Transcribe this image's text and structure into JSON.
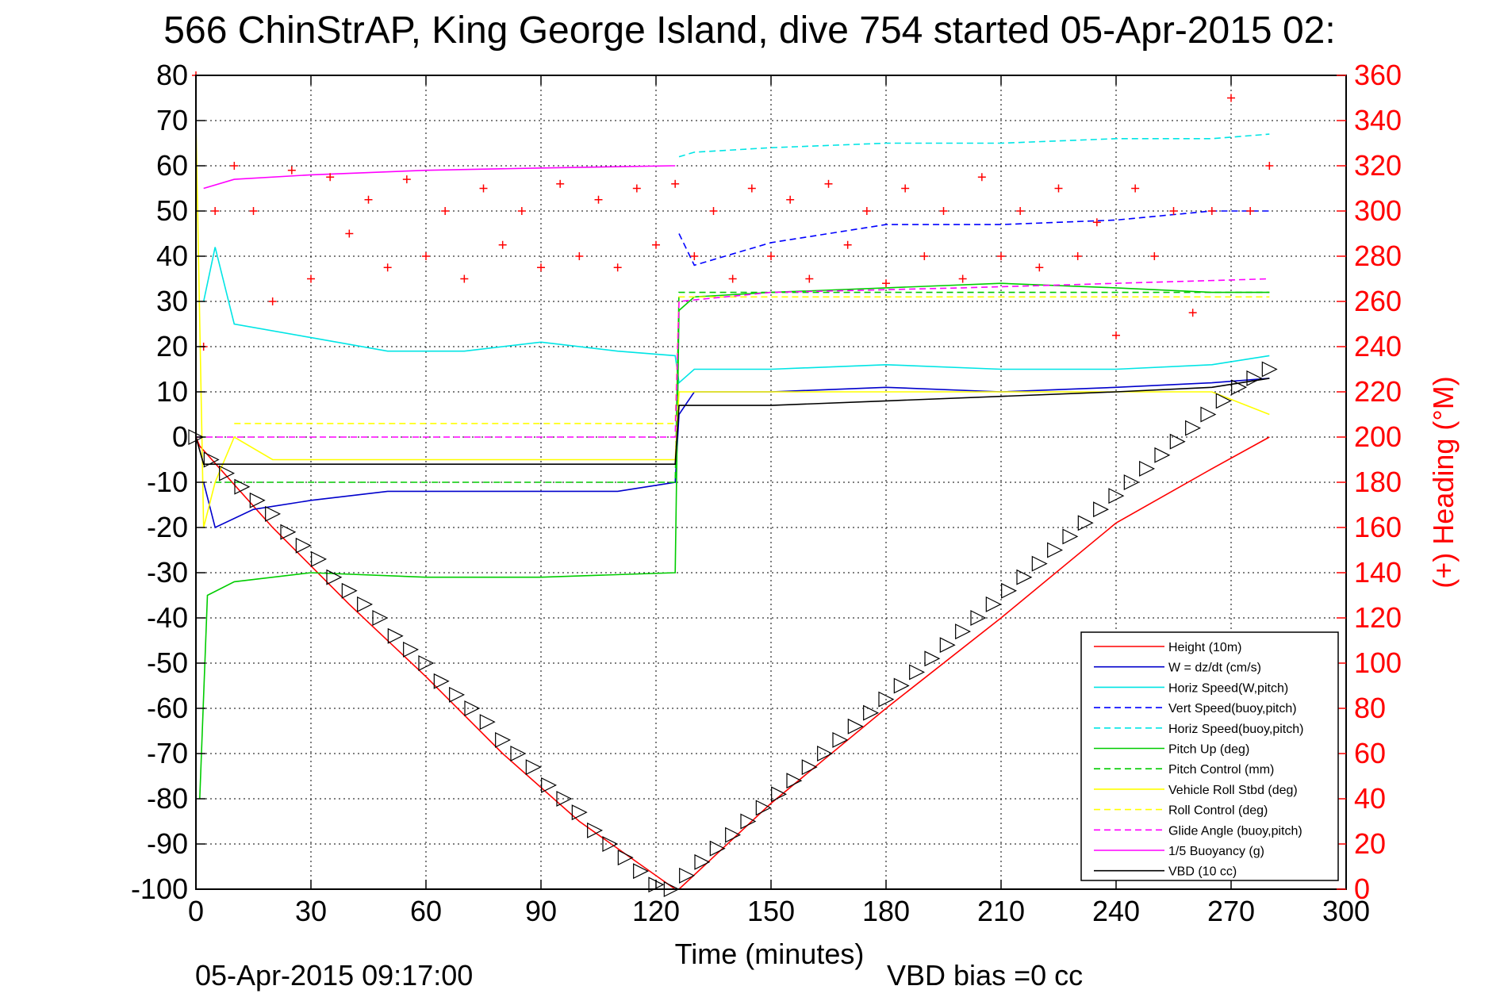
{
  "chart_data": {
    "type": "line",
    "title": "566 ChinStrAP, King George Island, dive 754 started 05-Apr-2015 02:",
    "xlabel": "Time (minutes)",
    "ylabel_right": "(+) Heading (°M)",
    "xlim": [
      0,
      300
    ],
    "ylim": [
      -100,
      80
    ],
    "ylim_right": [
      0,
      360
    ],
    "x_ticks": [
      "0",
      "30",
      "60",
      "90",
      "120",
      "150",
      "180",
      "210",
      "240",
      "270",
      "300"
    ],
    "y_ticks": [
      "80",
      "70",
      "60",
      "50",
      "40",
      "30",
      "20",
      "10",
      "0",
      "-10",
      "-20",
      "-30",
      "-40",
      "-50",
      "-60",
      "-70",
      "-80",
      "-90",
      "-100"
    ],
    "y_right_ticks": [
      "360",
      "340",
      "320",
      "300",
      "280",
      "260",
      "240",
      "220",
      "200",
      "180",
      "160",
      "140",
      "120",
      "100",
      "80",
      "60",
      "40",
      "20",
      "0"
    ],
    "grid": true,
    "legend_position": "bottom-right",
    "footer_left": "05-Apr-2015 09:17:00",
    "footer_right": "VBD bias =0 cc",
    "colors": {
      "heading": "#ff0000",
      "axis": "#000000"
    },
    "series": [
      {
        "name": "Height (10m)",
        "color": "#ff0000",
        "dash": "solid",
        "x": [
          0,
          1,
          20,
          40,
          60,
          80,
          100,
          125,
          126,
          150,
          180,
          210,
          240,
          265,
          280
        ],
        "y": [
          0,
          -2,
          -20,
          -37,
          -53,
          -70,
          -85,
          -100,
          -100,
          -81,
          -60,
          -40,
          -19,
          -7,
          0
        ]
      },
      {
        "name": "W = dz/dt (cm/s)",
        "color": "#0000cc",
        "dash": "solid",
        "x": [
          2,
          5,
          15,
          30,
          50,
          70,
          90,
          110,
          125,
          126,
          130,
          150,
          180,
          210,
          240,
          265,
          280
        ],
        "y": [
          -10,
          -20,
          -16,
          -14,
          -12,
          -12,
          -12,
          -12,
          -10,
          5,
          10,
          10,
          11,
          10,
          11,
          12,
          13
        ]
      },
      {
        "name": "Horiz Speed(W,pitch)",
        "color": "#00e5e5",
        "dash": "solid",
        "x": [
          2,
          5,
          10,
          30,
          50,
          70,
          90,
          110,
          125,
          126,
          130,
          150,
          180,
          210,
          240,
          265,
          280
        ],
        "y": [
          30,
          42,
          25,
          22,
          19,
          19,
          21,
          19,
          18,
          12,
          15,
          15,
          16,
          15,
          15,
          16,
          18
        ]
      },
      {
        "name": "Vert Speed(buoy,pitch)",
        "color": "#0000ff",
        "dash": "dashed",
        "x": [
          126,
          130,
          150,
          180,
          210,
          240,
          265,
          280
        ],
        "y": [
          45,
          38,
          43,
          47,
          47,
          48,
          50,
          50
        ]
      },
      {
        "name": "Horiz Speed(buoy,pitch)",
        "color": "#00e5e5",
        "dash": "dashed",
        "x": [
          126,
          130,
          150,
          180,
          210,
          240,
          265,
          280
        ],
        "y": [
          62,
          63,
          64,
          65,
          65,
          66,
          66,
          67
        ]
      },
      {
        "name": "Pitch Up (deg)",
        "color": "#00cc00",
        "dash": "solid",
        "x": [
          1,
          3,
          10,
          30,
          60,
          90,
          125,
          126,
          130,
          150,
          180,
          210,
          240,
          265,
          280
        ],
        "y": [
          -80,
          -35,
          -32,
          -30,
          -31,
          -31,
          -30,
          28,
          31,
          32,
          33,
          34,
          33,
          32,
          32
        ]
      },
      {
        "name": "Pitch Control (mm)",
        "color": "#00cc00",
        "dash": "dashed",
        "x": [
          5,
          125,
          126,
          280
        ],
        "y": [
          -10,
          -10,
          32,
          32
        ]
      },
      {
        "name": "Vehicle Roll Stbd (deg)",
        "color": "#ffff00",
        "dash": "solid",
        "x": [
          0,
          2,
          5,
          10,
          20,
          60,
          100,
          125,
          126,
          180,
          265,
          280
        ],
        "y": [
          70,
          -20,
          -10,
          0,
          -5,
          -5,
          -5,
          -5,
          10,
          10,
          10,
          5
        ]
      },
      {
        "name": "Roll Control (deg)",
        "color": "#ffff00",
        "dash": "dashed",
        "x": [
          10,
          125,
          126,
          280
        ],
        "y": [
          3,
          3,
          31,
          31
        ]
      },
      {
        "name": "Glide Angle (buoy,pitch)",
        "color": "#ff00ff",
        "dash": "dashed",
        "x": [
          0,
          125,
          126,
          150,
          200,
          280
        ],
        "y": [
          0,
          0,
          30,
          32,
          33,
          35
        ]
      },
      {
        "name": "1/5 Buoyancy (g)",
        "color": "#ff00ff",
        "dash": "solid",
        "x": [
          2,
          10,
          30,
          60,
          90,
          124,
          125
        ],
        "y": [
          55,
          57,
          58,
          59,
          59.5,
          60,
          60
        ]
      },
      {
        "name": "VBD (10 cc)",
        "color": "#000000",
        "dash": "solid",
        "x": [
          0,
          2,
          124,
          125,
          126,
          150,
          180,
          210,
          240,
          265,
          280
        ],
        "y": [
          0,
          -6,
          -6,
          -6,
          7,
          7,
          8,
          9,
          10,
          11,
          13
        ]
      }
    ],
    "heading_series": {
      "color": "#ff0000",
      "marker": "+",
      "x": [
        0,
        2,
        5,
        10,
        15,
        20,
        25,
        30,
        35,
        40,
        45,
        50,
        55,
        60,
        65,
        70,
        75,
        80,
        85,
        90,
        95,
        100,
        105,
        110,
        115,
        120,
        125,
        130,
        135,
        140,
        145,
        150,
        155,
        160,
        165,
        170,
        175,
        180,
        185,
        190,
        195,
        200,
        205,
        210,
        215,
        220,
        225,
        230,
        235,
        240,
        245,
        250,
        255,
        260,
        265,
        270,
        275,
        280
      ],
      "y": [
        360,
        240,
        300,
        320,
        300,
        260,
        318,
        270,
        315,
        290,
        305,
        275,
        314,
        280,
        300,
        270,
        310,
        285,
        300,
        275,
        312,
        280,
        305,
        275,
        310,
        285,
        312,
        280,
        300,
        270,
        310,
        280,
        305,
        270,
        312,
        285,
        300,
        268,
        310,
        280,
        300,
        270,
        315,
        280,
        300,
        275,
        310,
        280,
        295,
        245,
        310,
        280,
        300,
        255,
        300,
        350,
        300,
        320
      ]
    },
    "markers_series": {
      "color": "#000000",
      "marker": "triangle",
      "x": [
        0,
        4,
        8,
        12,
        16,
        20,
        24,
        28,
        32,
        36,
        40,
        44,
        48,
        52,
        56,
        60,
        64,
        68,
        72,
        76,
        80,
        84,
        88,
        92,
        96,
        100,
        104,
        108,
        112,
        116,
        120,
        124,
        128,
        132,
        136,
        140,
        144,
        148,
        152,
        156,
        160,
        164,
        168,
        172,
        176,
        180,
        184,
        188,
        192,
        196,
        200,
        204,
        208,
        212,
        216,
        220,
        224,
        228,
        232,
        236,
        240,
        244,
        248,
        252,
        256,
        260,
        264,
        268,
        272,
        276,
        280
      ],
      "y": [
        0,
        -5,
        -8,
        -11,
        -14,
        -17,
        -21,
        -24,
        -27,
        -31,
        -34,
        -37,
        -40,
        -44,
        -47,
        -50,
        -54,
        -57,
        -60,
        -63,
        -67,
        -70,
        -73,
        -77,
        -80,
        -83,
        -87,
        -90,
        -93,
        -96,
        -99,
        -100,
        -97,
        -94,
        -91,
        -88,
        -85,
        -82,
        -79,
        -76,
        -73,
        -70,
        -67,
        -64,
        -61,
        -58,
        -55,
        -52,
        -49,
        -46,
        -43,
        -40,
        -37,
        -34,
        -31,
        -28,
        -25,
        -22,
        -19,
        -16,
        -13,
        -10,
        -7,
        -4,
        -1,
        2,
        5,
        8,
        11,
        13,
        15
      ]
    }
  }
}
